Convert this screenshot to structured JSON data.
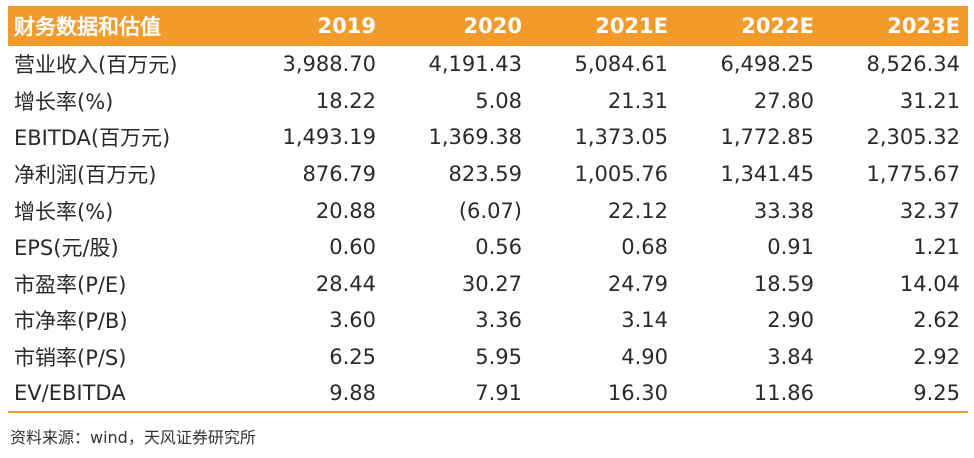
{
  "accent_color": "#F39A2D",
  "table": {
    "header": {
      "label": "财务数据和估值",
      "years": [
        "2019",
        "2020",
        "2021E",
        "2022E",
        "2023E"
      ]
    },
    "rows": [
      {
        "label": "营业收入(百万元)",
        "values": [
          "3,988.70",
          "4,191.43",
          "5,084.61",
          "6,498.25",
          "8,526.34"
        ]
      },
      {
        "label": "增长率(%)",
        "values": [
          "18.22",
          "5.08",
          "21.31",
          "27.80",
          "31.21"
        ]
      },
      {
        "label": "EBITDA(百万元)",
        "values": [
          "1,493.19",
          "1,369.38",
          "1,373.05",
          "1,772.85",
          "2,305.32"
        ]
      },
      {
        "label": "净利润(百万元)",
        "values": [
          "876.79",
          "823.59",
          "1,005.76",
          "1,341.45",
          "1,775.67"
        ]
      },
      {
        "label": "增长率(%)",
        "values": [
          "20.88",
          "(6.07)",
          "22.12",
          "33.38",
          "32.37"
        ]
      },
      {
        "label": "EPS(元/股)",
        "values": [
          "0.60",
          "0.56",
          "0.68",
          "0.91",
          "1.21"
        ]
      },
      {
        "label": "市盈率(P/E)",
        "values": [
          "28.44",
          "30.27",
          "24.79",
          "18.59",
          "14.04"
        ]
      },
      {
        "label": "市净率(P/B)",
        "values": [
          "3.60",
          "3.36",
          "3.14",
          "2.90",
          "2.62"
        ]
      },
      {
        "label": "市销率(P/S)",
        "values": [
          "6.25",
          "5.95",
          "4.90",
          "3.84",
          "2.92"
        ]
      },
      {
        "label": "EV/EBITDA",
        "values": [
          "9.88",
          "7.91",
          "16.30",
          "11.86",
          "9.25"
        ]
      }
    ]
  },
  "source": "资料来源：wind，天风证券研究所"
}
